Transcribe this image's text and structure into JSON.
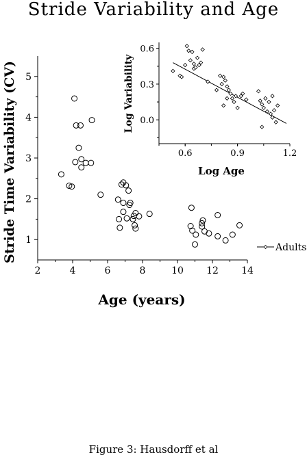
{
  "header": {
    "title": "Stride Variability and Age"
  },
  "caption": "Figure 3: Hausdorff et al",
  "chart_data": [
    {
      "type": "scatter",
      "xlabel": "Age (years)",
      "ylabel": "Stride Time Variability (CV)",
      "xlim": [
        2,
        14
      ],
      "ylim": [
        0.5,
        5.5
      ],
      "xticks": [
        2,
        4,
        6,
        8,
        10,
        12,
        14
      ],
      "yticks": [
        1,
        2,
        3,
        4,
        5
      ],
      "legend": {
        "label": "Adults",
        "placement": "right"
      },
      "marker": "open-circle",
      "points": [
        {
          "x": 4.1,
          "y": 4.46
        },
        {
          "x": 4.2,
          "y": 3.8
        },
        {
          "x": 4.45,
          "y": 3.8
        },
        {
          "x": 5.1,
          "y": 3.93
        },
        {
          "x": 4.35,
          "y": 3.25
        },
        {
          "x": 4.5,
          "y": 2.97
        },
        {
          "x": 4.75,
          "y": 2.88
        },
        {
          "x": 5.05,
          "y": 2.88
        },
        {
          "x": 4.15,
          "y": 2.9
        },
        {
          "x": 4.5,
          "y": 2.77
        },
        {
          "x": 3.35,
          "y": 2.6
        },
        {
          "x": 3.8,
          "y": 2.32
        },
        {
          "x": 3.95,
          "y": 2.3
        },
        {
          "x": 5.6,
          "y": 2.1
        },
        {
          "x": 6.9,
          "y": 2.4
        },
        {
          "x": 6.8,
          "y": 2.35
        },
        {
          "x": 7.05,
          "y": 2.33
        },
        {
          "x": 7.2,
          "y": 2.2
        },
        {
          "x": 6.6,
          "y": 1.98
        },
        {
          "x": 6.9,
          "y": 1.9
        },
        {
          "x": 7.3,
          "y": 1.9
        },
        {
          "x": 7.25,
          "y": 1.85
        },
        {
          "x": 6.9,
          "y": 1.68
        },
        {
          "x": 7.5,
          "y": 1.58
        },
        {
          "x": 7.6,
          "y": 1.65
        },
        {
          "x": 7.8,
          "y": 1.57
        },
        {
          "x": 8.4,
          "y": 1.63
        },
        {
          "x": 6.65,
          "y": 1.5
        },
        {
          "x": 7.1,
          "y": 1.52
        },
        {
          "x": 7.45,
          "y": 1.5
        },
        {
          "x": 7.55,
          "y": 1.35
        },
        {
          "x": 6.7,
          "y": 1.29
        },
        {
          "x": 7.6,
          "y": 1.27
        },
        {
          "x": 10.8,
          "y": 1.78
        },
        {
          "x": 10.75,
          "y": 1.33
        },
        {
          "x": 10.85,
          "y": 1.22
        },
        {
          "x": 11.05,
          "y": 1.12
        },
        {
          "x": 11.0,
          "y": 0.88
        },
        {
          "x": 11.4,
          "y": 1.4
        },
        {
          "x": 11.45,
          "y": 1.47
        },
        {
          "x": 11.4,
          "y": 1.32
        },
        {
          "x": 11.55,
          "y": 1.2
        },
        {
          "x": 11.8,
          "y": 1.15
        },
        {
          "x": 12.3,
          "y": 1.6
        },
        {
          "x": 12.3,
          "y": 1.08
        },
        {
          "x": 12.75,
          "y": 0.98
        },
        {
          "x": 13.15,
          "y": 1.12
        },
        {
          "x": 13.55,
          "y": 1.35
        }
      ]
    },
    {
      "type": "scatter",
      "xlabel": "Log Age",
      "ylabel": "Log Variability",
      "xlim": [
        0.45,
        1.2
      ],
      "ylim": [
        -0.2,
        0.65
      ],
      "xticks": [
        0.6,
        0.9,
        1.2
      ],
      "yticks": [
        0.0,
        0.3,
        0.6
      ],
      "xtick_labels": [
        "0.6",
        "0.9",
        "1.2"
      ],
      "ytick_labels": [
        "0.0",
        "0.3",
        "0.6"
      ],
      "regression_line": {
        "x": [
          0.53,
          1.18
        ],
        "y": [
          0.48,
          -0.03
        ]
      },
      "marker": "open-diamond",
      "points": [
        {
          "x": 0.53,
          "y": 0.41
        },
        {
          "x": 0.57,
          "y": 0.37
        },
        {
          "x": 0.58,
          "y": 0.36
        },
        {
          "x": 0.6,
          "y": 0.46
        },
        {
          "x": 0.61,
          "y": 0.62
        },
        {
          "x": 0.62,
          "y": 0.58
        },
        {
          "x": 0.63,
          "y": 0.5
        },
        {
          "x": 0.64,
          "y": 0.57
        },
        {
          "x": 0.65,
          "y": 0.47
        },
        {
          "x": 0.65,
          "y": 0.43
        },
        {
          "x": 0.66,
          "y": 0.44
        },
        {
          "x": 0.67,
          "y": 0.52
        },
        {
          "x": 0.68,
          "y": 0.46
        },
        {
          "x": 0.69,
          "y": 0.48
        },
        {
          "x": 0.7,
          "y": 0.59
        },
        {
          "x": 0.73,
          "y": 0.32
        },
        {
          "x": 0.78,
          "y": 0.25
        },
        {
          "x": 0.8,
          "y": 0.37
        },
        {
          "x": 0.81,
          "y": 0.3
        },
        {
          "x": 0.82,
          "y": 0.36
        },
        {
          "x": 0.83,
          "y": 0.33
        },
        {
          "x": 0.84,
          "y": 0.28
        },
        {
          "x": 0.85,
          "y": 0.25
        },
        {
          "x": 0.86,
          "y": 0.22
        },
        {
          "x": 0.84,
          "y": 0.18
        },
        {
          "x": 0.87,
          "y": 0.18
        },
        {
          "x": 0.88,
          "y": 0.15
        },
        {
          "x": 0.82,
          "y": 0.12
        },
        {
          "x": 0.89,
          "y": 0.2
        },
        {
          "x": 0.9,
          "y": 0.1
        },
        {
          "x": 0.92,
          "y": 0.2
        },
        {
          "x": 0.93,
          "y": 0.22
        },
        {
          "x": 0.95,
          "y": 0.17
        },
        {
          "x": 1.02,
          "y": 0.24
        },
        {
          "x": 1.03,
          "y": 0.16
        },
        {
          "x": 1.04,
          "y": 0.13
        },
        {
          "x": 1.05,
          "y": 0.1
        },
        {
          "x": 1.06,
          "y": 0.18
        },
        {
          "x": 1.07,
          "y": 0.07
        },
        {
          "x": 1.08,
          "y": 0.15
        },
        {
          "x": 1.09,
          "y": 0.05
        },
        {
          "x": 1.1,
          "y": 0.2
        },
        {
          "x": 1.1,
          "y": 0.02
        },
        {
          "x": 1.11,
          "y": 0.08
        },
        {
          "x": 1.12,
          "y": -0.02
        },
        {
          "x": 1.13,
          "y": 0.12
        },
        {
          "x": 1.04,
          "y": -0.06
        }
      ]
    }
  ]
}
